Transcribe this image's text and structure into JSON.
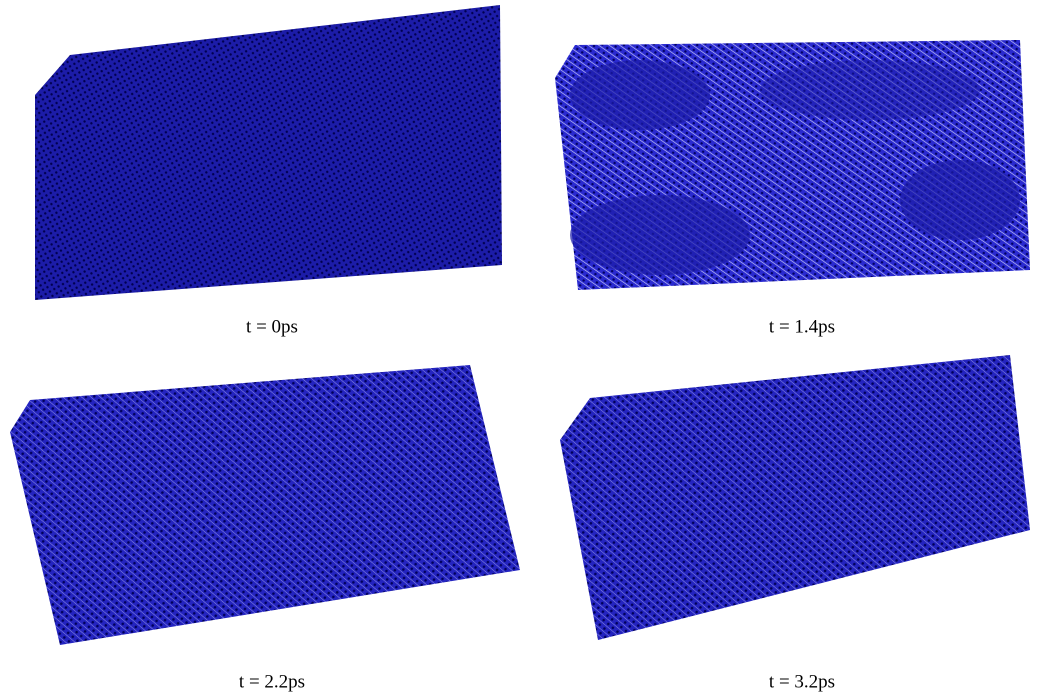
{
  "panels": [
    {
      "caption": "t = 0ps"
    },
    {
      "caption": "t = 1.4ps"
    },
    {
      "caption": "t = 2.2ps"
    },
    {
      "caption": "t = 3.2ps"
    }
  ]
}
